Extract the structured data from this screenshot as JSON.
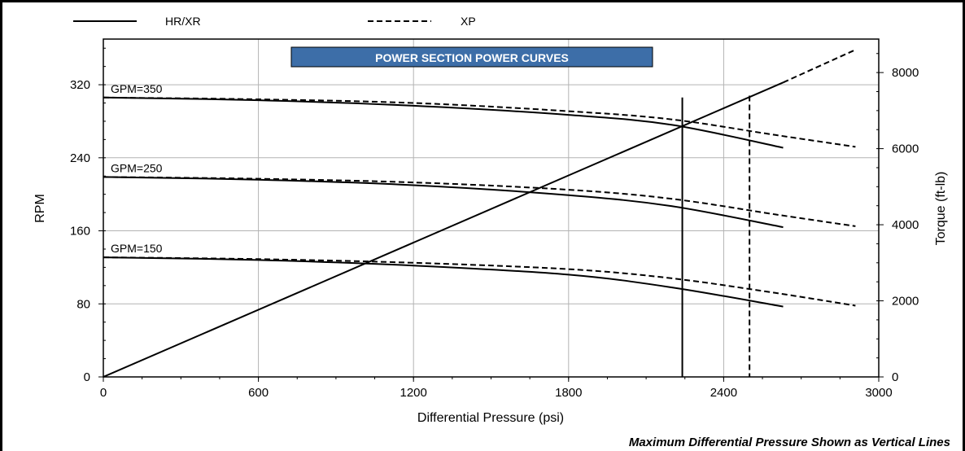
{
  "chart_data": {
    "type": "line",
    "title": "POWER SECTION POWER CURVES",
    "xlabel": "Differential Pressure (psi)",
    "ylabel": "RPM",
    "y2label": "Torque (ft-lb)",
    "footnote": "Maximum Differential Pressure Shown as Vertical Lines",
    "xlim": [
      0,
      3000
    ],
    "ylim": [
      0,
      370
    ],
    "y2lim": [
      0,
      8880
    ],
    "x_ticks": [
      0,
      600,
      1200,
      1800,
      2400,
      3000
    ],
    "y_ticks": [
      0,
      80,
      160,
      240,
      320
    ],
    "y2_ticks": [
      0,
      2000,
      4000,
      6000,
      8000
    ],
    "grid": true,
    "legend": [
      {
        "label": "HR/XR",
        "style": "solid"
      },
      {
        "label": "XP",
        "style": "dashed"
      }
    ],
    "title_color": "#3d6ea8",
    "series": [
      {
        "label": "GPM=350",
        "style": "solid",
        "axis": "rpm",
        "x": [
          0,
          600,
          1200,
          1800,
          2200,
          2630
        ],
        "y": [
          306,
          303,
          297,
          287,
          276,
          251
        ]
      },
      {
        "label": "",
        "style": "dashed",
        "axis": "rpm",
        "x": [
          0,
          600,
          1200,
          1800,
          2200,
          2600,
          2910
        ],
        "y": [
          306,
          304,
          300,
          291,
          282,
          265,
          252
        ]
      },
      {
        "label": "GPM=250",
        "style": "solid",
        "axis": "rpm",
        "x": [
          0,
          600,
          1200,
          1800,
          2200,
          2630
        ],
        "y": [
          219,
          216,
          210,
          199,
          187,
          164
        ]
      },
      {
        "label": "",
        "style": "dashed",
        "axis": "rpm",
        "x": [
          0,
          600,
          1200,
          1800,
          2200,
          2600,
          2910
        ],
        "y": [
          219,
          217,
          213,
          205,
          195,
          178,
          165
        ]
      },
      {
        "label": "GPM=150",
        "style": "solid",
        "axis": "rpm",
        "x": [
          0,
          600,
          1200,
          1800,
          2200,
          2630
        ],
        "y": [
          131,
          128,
          122,
          112,
          98,
          77
        ]
      },
      {
        "label": "",
        "style": "dashed",
        "axis": "rpm",
        "x": [
          0,
          600,
          1200,
          1800,
          2200,
          2600,
          2910
        ],
        "y": [
          131,
          129,
          125,
          118,
          108,
          92,
          78
        ]
      },
      {
        "label": "",
        "style": "solid",
        "axis": "torque",
        "x": [
          0,
          2630
        ],
        "y": [
          0,
          7740
        ]
      },
      {
        "label": "",
        "style": "dashed",
        "axis": "torque",
        "x": [
          2630,
          2910
        ],
        "y": [
          7740,
          8600
        ]
      }
    ],
    "max_lines": [
      {
        "x": 2240,
        "style": "solid",
        "top_rpm": 306
      },
      {
        "x": 2500,
        "style": "dashed",
        "top_rpm": 308
      }
    ]
  }
}
